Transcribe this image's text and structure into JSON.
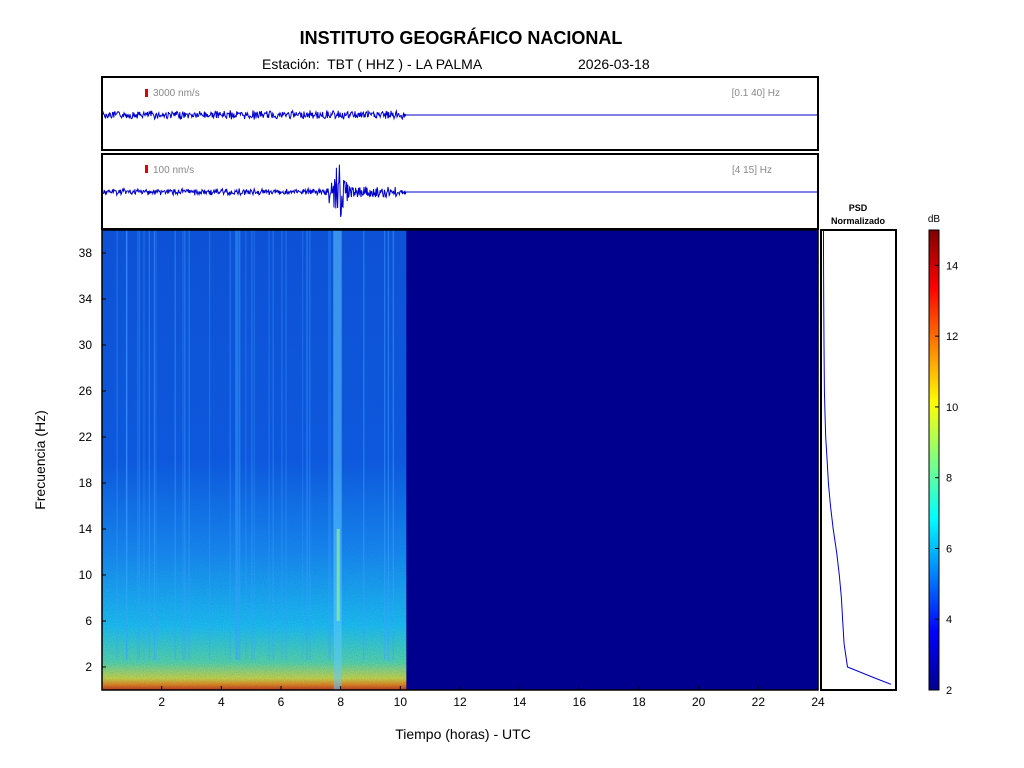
{
  "header": {
    "title": "INSTITUTO GEOGRÁFICO NACIONAL",
    "station_label": "Estación:",
    "station": "TBT ( HHZ ) - LA PALMA",
    "date": "2026-03-18"
  },
  "traces": [
    {
      "scale_label": "3000 nm/s",
      "band_label": "[0.1 40] Hz"
    },
    {
      "scale_label": "100 nm/s",
      "band_label": "[4 15] Hz"
    }
  ],
  "psd_panel": {
    "title_line1": "PSD",
    "title_line2": "Normalizado"
  },
  "colors": {
    "trace": "#0000cc",
    "scale_bar": "#dd0000",
    "colormap": [
      "#00008f",
      "#0000ff",
      "#0080ff",
      "#00ffff",
      "#80ff80",
      "#ffff00",
      "#ff8000",
      "#ff0000",
      "#800000"
    ]
  },
  "chart_data": {
    "type": "heatmap",
    "xlabel": "Tiempo (horas) - UTC",
    "ylabel": "Frecuencia  (Hz)",
    "x_ticks": [
      2,
      4,
      6,
      8,
      10,
      12,
      14,
      16,
      18,
      20,
      22,
      24
    ],
    "y_ticks": [
      2,
      6,
      10,
      14,
      18,
      22,
      26,
      30,
      34,
      38
    ],
    "xlim": [
      0,
      24
    ],
    "ylim": [
      0,
      40
    ],
    "data_end_hour": 10.2,
    "event_hour": 7.9,
    "colorbar": {
      "label": "dB",
      "ticks": [
        2,
        4,
        6,
        8,
        10,
        12,
        14
      ],
      "range": [
        2,
        15
      ]
    },
    "psd_profile": {
      "frequencies": [
        0.5,
        1,
        2,
        4,
        6,
        8,
        10,
        12,
        14,
        16,
        18,
        20,
        22,
        24,
        26,
        30,
        34,
        38,
        40
      ],
      "values": [
        1.0,
        0.78,
        0.36,
        0.31,
        0.29,
        0.27,
        0.24,
        0.2,
        0.15,
        0.11,
        0.08,
        0.06,
        0.04,
        0.03,
        0.02,
        0.015,
        0.01,
        0.008,
        0.007
      ]
    }
  }
}
